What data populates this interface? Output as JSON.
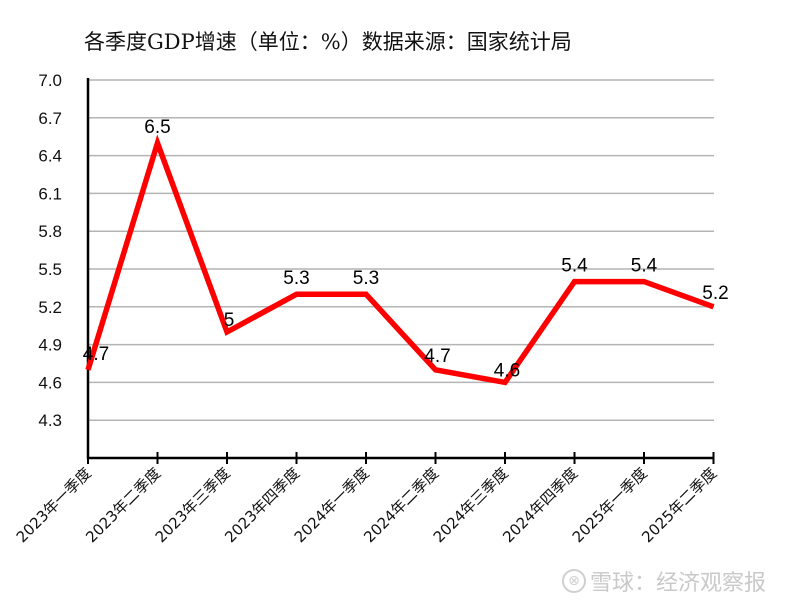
{
  "chart_data": {
    "type": "line",
    "title": "各季度GDP增速（单位：%）数据来源：国家统计局",
    "xlabel": "",
    "ylabel": "",
    "categories": [
      "2023年一季度",
      "2023年二季度",
      "2023年三季度",
      "2023年四季度",
      "2024年一季度",
      "2024年二季度",
      "2024年三季度",
      "2024年四季度",
      "2025年一季度",
      "2025年二季度"
    ],
    "series": [
      {
        "name": "GDP增速",
        "values": [
          4.7,
          6.5,
          5.0,
          5.3,
          5.3,
          4.7,
          4.6,
          5.4,
          5.4,
          5.2
        ],
        "color": "#ff0000"
      }
    ],
    "data_labels": [
      "4.7",
      "6.5",
      "5",
      "5.3",
      "5.3",
      "4.7",
      "4.6",
      "5.4",
      "5.4",
      "5.2"
    ],
    "ylim": [
      4.0,
      7.0
    ],
    "yticks": [
      "7.0",
      "6.7",
      "6.4",
      "6.1",
      "5.8",
      "5.5",
      "5.2",
      "4.9",
      "4.6",
      "4.3"
    ],
    "grid": true,
    "legend": "none"
  },
  "watermark": {
    "logo": "⊗",
    "text": "雪球：经济观察报"
  }
}
